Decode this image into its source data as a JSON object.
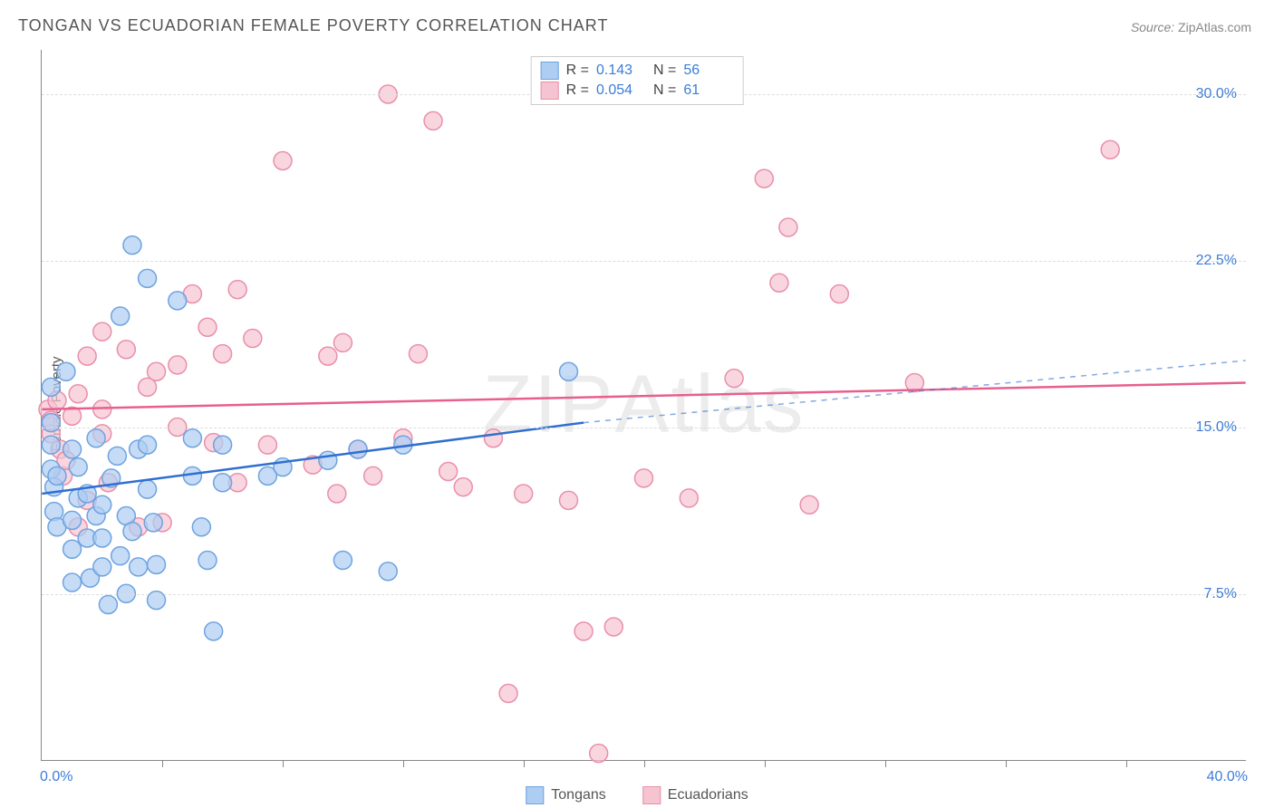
{
  "title": "TONGAN VS ECUADORIAN FEMALE POVERTY CORRELATION CHART",
  "source_label": "Source:",
  "source_value": "ZipAtlas.com",
  "ylabel": "Female Poverty",
  "watermark": "ZIPAtlas",
  "chart": {
    "type": "scatter",
    "xlim": [
      0,
      40
    ],
    "ylim": [
      0,
      32
    ],
    "x_left_label": "0.0%",
    "x_right_label": "40.0%",
    "yticks": [
      7.5,
      15.0,
      22.5,
      30.0
    ],
    "ytick_labels": [
      "7.5%",
      "15.0%",
      "22.5%",
      "30.0%"
    ],
    "xticks": [
      4,
      8,
      12,
      16,
      20,
      24,
      28,
      32,
      36
    ],
    "grid_color": "#dddddd",
    "axis_color": "#888888",
    "background": "#ffffff"
  },
  "series": {
    "tongans": {
      "label": "Tongans",
      "R": "0.143",
      "N": "56",
      "fill": "#aecdf2",
      "stroke": "#6ea3e0",
      "line_color": "#2f6fd0",
      "marker_r": 10,
      "trend": {
        "x1": 0,
        "y1": 12.0,
        "x2": 18,
        "y2": 15.2,
        "ext_x2": 40,
        "ext_y2": 18.0
      },
      "points": [
        [
          0.3,
          16.8
        ],
        [
          0.3,
          15.2
        ],
        [
          0.3,
          14.2
        ],
        [
          0.3,
          13.1
        ],
        [
          0.4,
          12.3
        ],
        [
          0.4,
          11.2
        ],
        [
          0.5,
          10.5
        ],
        [
          0.5,
          12.8
        ],
        [
          0.8,
          17.5
        ],
        [
          1.0,
          14.0
        ],
        [
          1.0,
          10.8
        ],
        [
          1.0,
          9.5
        ],
        [
          1.0,
          8.0
        ],
        [
          1.2,
          11.8
        ],
        [
          1.2,
          13.2
        ],
        [
          1.5,
          12.0
        ],
        [
          1.5,
          10.0
        ],
        [
          1.6,
          8.2
        ],
        [
          1.8,
          11.0
        ],
        [
          1.8,
          14.5
        ],
        [
          2.0,
          11.5
        ],
        [
          2.0,
          10.0
        ],
        [
          2.0,
          8.7
        ],
        [
          2.2,
          7.0
        ],
        [
          2.3,
          12.7
        ],
        [
          2.5,
          13.7
        ],
        [
          2.6,
          9.2
        ],
        [
          2.6,
          20.0
        ],
        [
          2.8,
          11.0
        ],
        [
          2.8,
          7.5
        ],
        [
          3.0,
          23.2
        ],
        [
          3.0,
          10.3
        ],
        [
          3.2,
          14.0
        ],
        [
          3.2,
          8.7
        ],
        [
          3.5,
          21.7
        ],
        [
          3.5,
          14.2
        ],
        [
          3.5,
          12.2
        ],
        [
          3.7,
          10.7
        ],
        [
          3.8,
          8.8
        ],
        [
          3.8,
          7.2
        ],
        [
          4.5,
          20.7
        ],
        [
          5.0,
          14.5
        ],
        [
          5.0,
          12.8
        ],
        [
          5.3,
          10.5
        ],
        [
          5.5,
          9.0
        ],
        [
          5.7,
          5.8
        ],
        [
          6.0,
          14.2
        ],
        [
          6.0,
          12.5
        ],
        [
          7.5,
          12.8
        ],
        [
          8.0,
          13.2
        ],
        [
          9.5,
          13.5
        ],
        [
          10.5,
          14.0
        ],
        [
          10.0,
          9.0
        ],
        [
          11.5,
          8.5
        ],
        [
          12.0,
          14.2
        ],
        [
          17.5,
          17.5
        ]
      ]
    },
    "ecuadorians": {
      "label": "Ecuadorians",
      "R": "0.054",
      "N": "61",
      "fill": "#f6c4d1",
      "stroke": "#e98fab",
      "line_color": "#e85f8f",
      "marker_r": 10,
      "trend": {
        "x1": 0,
        "y1": 15.8,
        "x2": 40,
        "y2": 17.0
      },
      "points": [
        [
          0.2,
          15.8
        ],
        [
          0.3,
          14.7
        ],
        [
          0.3,
          15.3
        ],
        [
          0.5,
          16.2
        ],
        [
          0.6,
          14.0
        ],
        [
          0.7,
          12.8
        ],
        [
          0.8,
          13.5
        ],
        [
          1.0,
          15.5
        ],
        [
          1.2,
          10.5
        ],
        [
          1.2,
          16.5
        ],
        [
          1.5,
          11.7
        ],
        [
          1.5,
          18.2
        ],
        [
          2.0,
          19.3
        ],
        [
          2.0,
          14.7
        ],
        [
          2.0,
          15.8
        ],
        [
          2.2,
          12.5
        ],
        [
          2.8,
          18.5
        ],
        [
          3.2,
          10.5
        ],
        [
          3.5,
          16.8
        ],
        [
          3.8,
          17.5
        ],
        [
          4.0,
          10.7
        ],
        [
          4.5,
          15.0
        ],
        [
          4.5,
          17.8
        ],
        [
          5.0,
          21.0
        ],
        [
          5.5,
          19.5
        ],
        [
          5.7,
          14.3
        ],
        [
          6.0,
          18.3
        ],
        [
          6.5,
          21.2
        ],
        [
          6.5,
          12.5
        ],
        [
          7.0,
          19.0
        ],
        [
          7.5,
          14.2
        ],
        [
          8.0,
          27.0
        ],
        [
          9.0,
          13.3
        ],
        [
          9.5,
          18.2
        ],
        [
          9.8,
          12.0
        ],
        [
          10.0,
          18.8
        ],
        [
          10.5,
          14.0
        ],
        [
          11.0,
          12.8
        ],
        [
          11.5,
          30.0
        ],
        [
          12.0,
          14.5
        ],
        [
          12.5,
          18.3
        ],
        [
          13.0,
          28.8
        ],
        [
          13.5,
          13.0
        ],
        [
          14.0,
          12.3
        ],
        [
          15.0,
          14.5
        ],
        [
          15.5,
          3.0
        ],
        [
          16.0,
          12.0
        ],
        [
          17.5,
          11.7
        ],
        [
          18.0,
          5.8
        ],
        [
          18.5,
          0.3
        ],
        [
          19.0,
          6.0
        ],
        [
          20.0,
          12.7
        ],
        [
          21.5,
          11.8
        ],
        [
          23.0,
          17.2
        ],
        [
          24.0,
          26.2
        ],
        [
          24.5,
          21.5
        ],
        [
          24.8,
          24.0
        ],
        [
          25.5,
          11.5
        ],
        [
          26.5,
          21.0
        ],
        [
          29.0,
          17.0
        ],
        [
          35.5,
          27.5
        ]
      ]
    }
  },
  "corr_legend": {
    "r_label": "R =",
    "n_label": "N ="
  }
}
